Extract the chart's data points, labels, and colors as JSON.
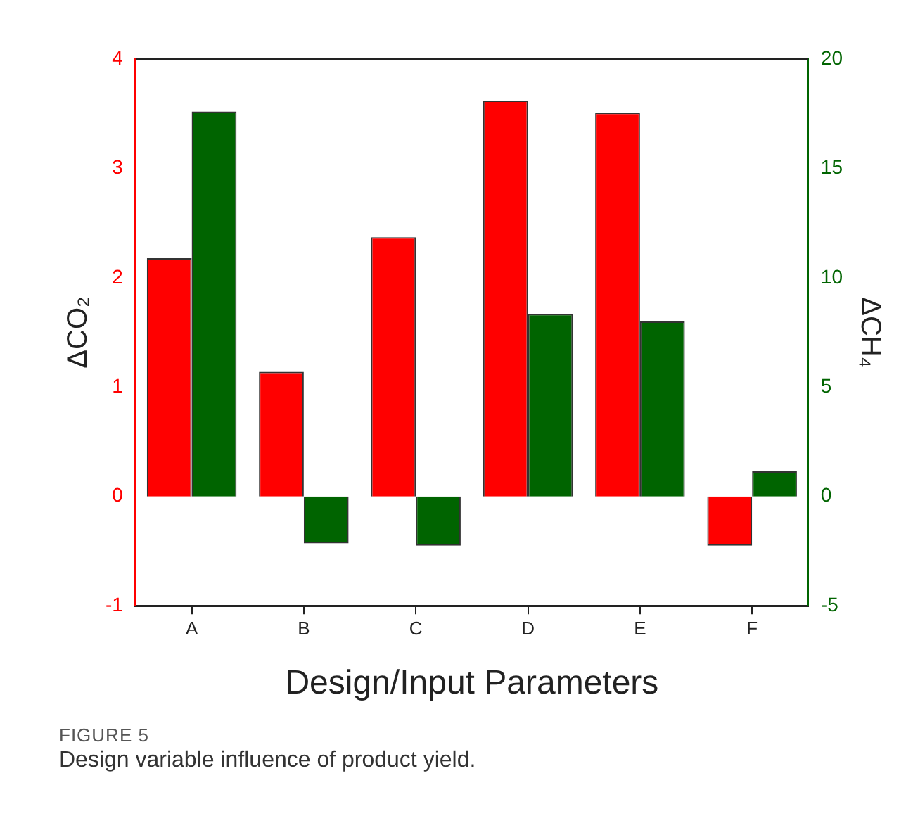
{
  "chart_data": {
    "type": "bar",
    "categories": [
      "A",
      "B",
      "C",
      "D",
      "E",
      "F"
    ],
    "xlabel": "Design/Input Parameters",
    "ylabel": "ΔCO₂",
    "y2label": "ΔCH₄",
    "series": [
      {
        "color": "#ff0000",
        "values": [
          2.18,
          1.14,
          2.37,
          3.62,
          3.51,
          -0.45
        ]
      },
      {
        "color": "#006400",
        "axis": "y2",
        "values": [
          17.6,
          -2.15,
          -2.25,
          8.35,
          8.0,
          1.15
        ]
      }
    ],
    "ylim": [
      -1,
      4
    ],
    "yticks": [
      -1,
      0,
      1,
      2,
      3,
      4
    ],
    "y2lim": [
      -5,
      20
    ],
    "y2ticks": [
      -5,
      0,
      5,
      10,
      15,
      20
    ],
    "grid": false,
    "legend": false,
    "annotations": [
      "FIGURE 5",
      "Design variable influence of product yield."
    ]
  }
}
